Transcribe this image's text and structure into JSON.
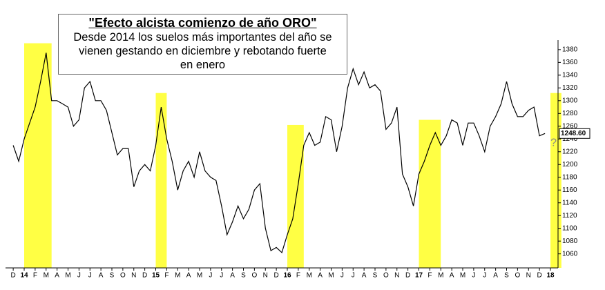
{
  "chart_data": {
    "type": "line",
    "title": "\"Efecto alcista comienzo de año ORO\"",
    "subtitle_lines": [
      "Desde 2014 los suelos más importantes del año se",
      "vienen gestando en diciembre y rebotando fuerte",
      "en enero"
    ],
    "categories": [
      "D",
      null,
      "14",
      null,
      "F",
      null,
      "M",
      null,
      "A",
      null,
      "M",
      null,
      "J",
      null,
      "J",
      null,
      "A",
      null,
      "S",
      null,
      "O",
      null,
      "N",
      null,
      "D",
      null,
      "15",
      null,
      "F",
      null,
      "M",
      null,
      "A",
      null,
      "M",
      null,
      "J",
      null,
      "J",
      null,
      "A",
      null,
      "S",
      null,
      "O",
      null,
      "N",
      null,
      "D",
      null,
      "16",
      null,
      "F",
      null,
      "M",
      null,
      "A",
      null,
      "M",
      null,
      "J",
      null,
      "J",
      null,
      "A",
      null,
      "S",
      null,
      "O",
      null,
      "N",
      null,
      "D",
      null,
      "17",
      null,
      "F",
      null,
      "M",
      null,
      "A",
      null,
      "M",
      null,
      "J",
      null,
      "J",
      null,
      "A",
      null,
      "S",
      null,
      "O",
      null,
      "N",
      null,
      "D",
      null,
      "18"
    ],
    "values": [
      1230,
      1205,
      1240,
      1265,
      1290,
      1330,
      1375,
      1300,
      1300,
      1295,
      1290,
      1260,
      1270,
      1320,
      1330,
      1300,
      1300,
      1285,
      1250,
      1215,
      1225,
      1225,
      1165,
      1190,
      1200,
      1190,
      1230,
      1290,
      1240,
      1205,
      1160,
      1190,
      1205,
      1180,
      1220,
      1190,
      1180,
      1175,
      1135,
      1090,
      1110,
      1135,
      1115,
      1130,
      1160,
      1170,
      1100,
      1065,
      1070,
      1062,
      1090,
      1115,
      1170,
      1230,
      1250,
      1230,
      1235,
      1275,
      1270,
      1220,
      1260,
      1320,
      1350,
      1325,
      1345,
      1320,
      1325,
      1315,
      1255,
      1265,
      1290,
      1185,
      1165,
      1135,
      1185,
      1205,
      1230,
      1250,
      1230,
      1245,
      1270,
      1265,
      1230,
      1265,
      1265,
      1245,
      1220,
      1260,
      1275,
      1295,
      1330,
      1295,
      1275,
      1275,
      1285,
      1290,
      1245,
      1248.6,
      null
    ],
    "last_price_label": "1248.60",
    "question_mark": "?",
    "color": "#000000",
    "highlight_color": "#ffff44",
    "highlights": [
      {
        "start": 2,
        "end": 7,
        "top": 1390
      },
      {
        "start": 26,
        "end": 28,
        "top": 1312
      },
      {
        "start": 50,
        "end": 53,
        "top": 1262
      },
      {
        "start": 74,
        "end": 78,
        "top": 1270
      },
      {
        "start": 98,
        "end": 100,
        "top": 1312
      }
    ],
    "ylim": [
      1038,
      1395
    ],
    "yticks": [
      1060,
      1080,
      1100,
      1120,
      1140,
      1160,
      1180,
      1200,
      1220,
      1240,
      1260,
      1280,
      1300,
      1320,
      1340,
      1360,
      1380
    ]
  }
}
